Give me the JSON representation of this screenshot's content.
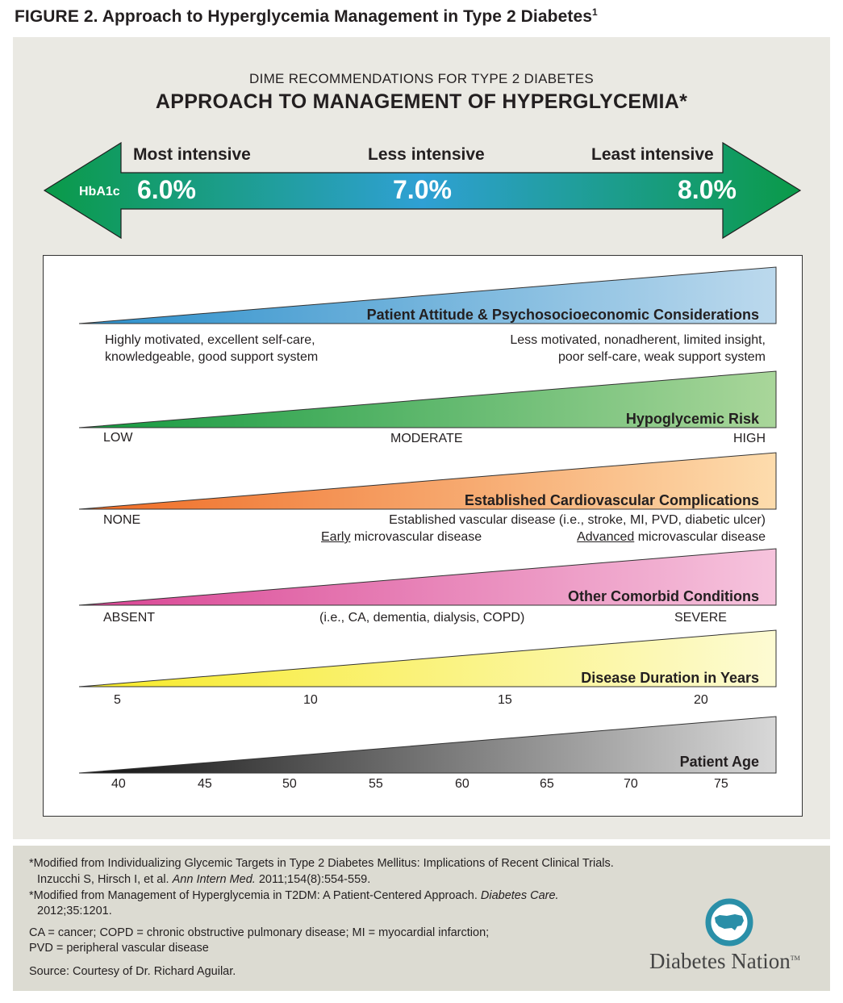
{
  "figure_title": "FIGURE 2. Approach to Hyperglycemia Management in Type 2 Diabetes",
  "figure_title_sup": "1",
  "subtitle": "DIME RECOMMENDATIONS FOR TYPE 2 DIABETES",
  "main_title": "APPROACH TO MANAGEMENT OF HYPERGLYCEMIA*",
  "arrow": {
    "hba1c_label": "HbA1c",
    "left": {
      "intensity": "Most intensive",
      "value": "6.0%"
    },
    "middle": {
      "intensity": "Less intensive",
      "value": "7.0%"
    },
    "right": {
      "intensity": "Least intensive",
      "value": "8.0%"
    },
    "colors": {
      "end": "#0a9a48",
      "center": "#2fa0d4"
    }
  },
  "rows": [
    {
      "label": "Patient Attitude & Psychosocioeconomic Considerations",
      "left_lines": [
        "Highly motivated, excellent self-care,",
        "knowledgeable, good support system"
      ],
      "right_lines": [
        "Less motivated, nonadherent, limited insight,",
        "poor self-care, weak support system"
      ],
      "colors": [
        "#2b8fcb",
        "#bcd9ed"
      ]
    },
    {
      "label": "Hypoglycemic Risk",
      "scale": [
        "LOW",
        "MODERATE",
        "HIGH"
      ],
      "colors": [
        "#13993f",
        "#a9d69a"
      ]
    },
    {
      "label": "Established Cardiovascular Complications",
      "none": "NONE",
      "line1": "Established vascular disease (i.e., stroke, MI, PVD, diabetic ulcer)",
      "early_u": "Early",
      "early_rest": " microvascular disease",
      "adv_u": "Advanced",
      "adv_rest": " microvascular disease",
      "colors": [
        "#ef6a23",
        "#fddcad"
      ]
    },
    {
      "label": "Other Comorbid Conditions",
      "scale": [
        "ABSENT",
        "(i.e., CA, dementia, dialysis, COPD)",
        "SEVERE"
      ],
      "colors": [
        "#d94393",
        "#f6c4dd"
      ]
    },
    {
      "label": "Disease Duration in Years",
      "scale": [
        "5",
        "10",
        "15",
        "20"
      ],
      "colors": [
        "#f7ea26",
        "#fdfbd3"
      ]
    },
    {
      "label": "Patient Age",
      "scale": [
        "40",
        "45",
        "50",
        "55",
        "60",
        "65",
        "70",
        "75"
      ],
      "colors": [
        "#111111",
        "#d8d8d8"
      ]
    }
  ],
  "footnotes": {
    "ref1_line1": "*Modified from Individualizing Glycemic Targets in Type 2 Diabetes Mellitus: Implications of Recent Clinical Trials.",
    "ref1_line2_a": "Inzucchi S, Hirsch I, et al. ",
    "ref1_line2_journal": "Ann Intern Med.",
    "ref1_line2_b": " 2011;154(8):554-559.",
    "ref2_line1_a": "*Modified from Management of Hyperglycemia in T2DM: A Patient-Centered Approach. ",
    "ref2_line1_journal": "Diabetes Care.",
    "ref2_line2": "2012;35:1201.",
    "abbr_line1": "CA = cancer; COPD = chronic obstructive pulmonary disease; MI = myocardial infarction;",
    "abbr_line2": "PVD = peripheral vascular disease",
    "source": "Source: Courtesy of Dr. Richard Aguilar."
  },
  "brand": {
    "name": "Diabetes Nation",
    "tm": "TM",
    "color": "#2a8fa8"
  }
}
